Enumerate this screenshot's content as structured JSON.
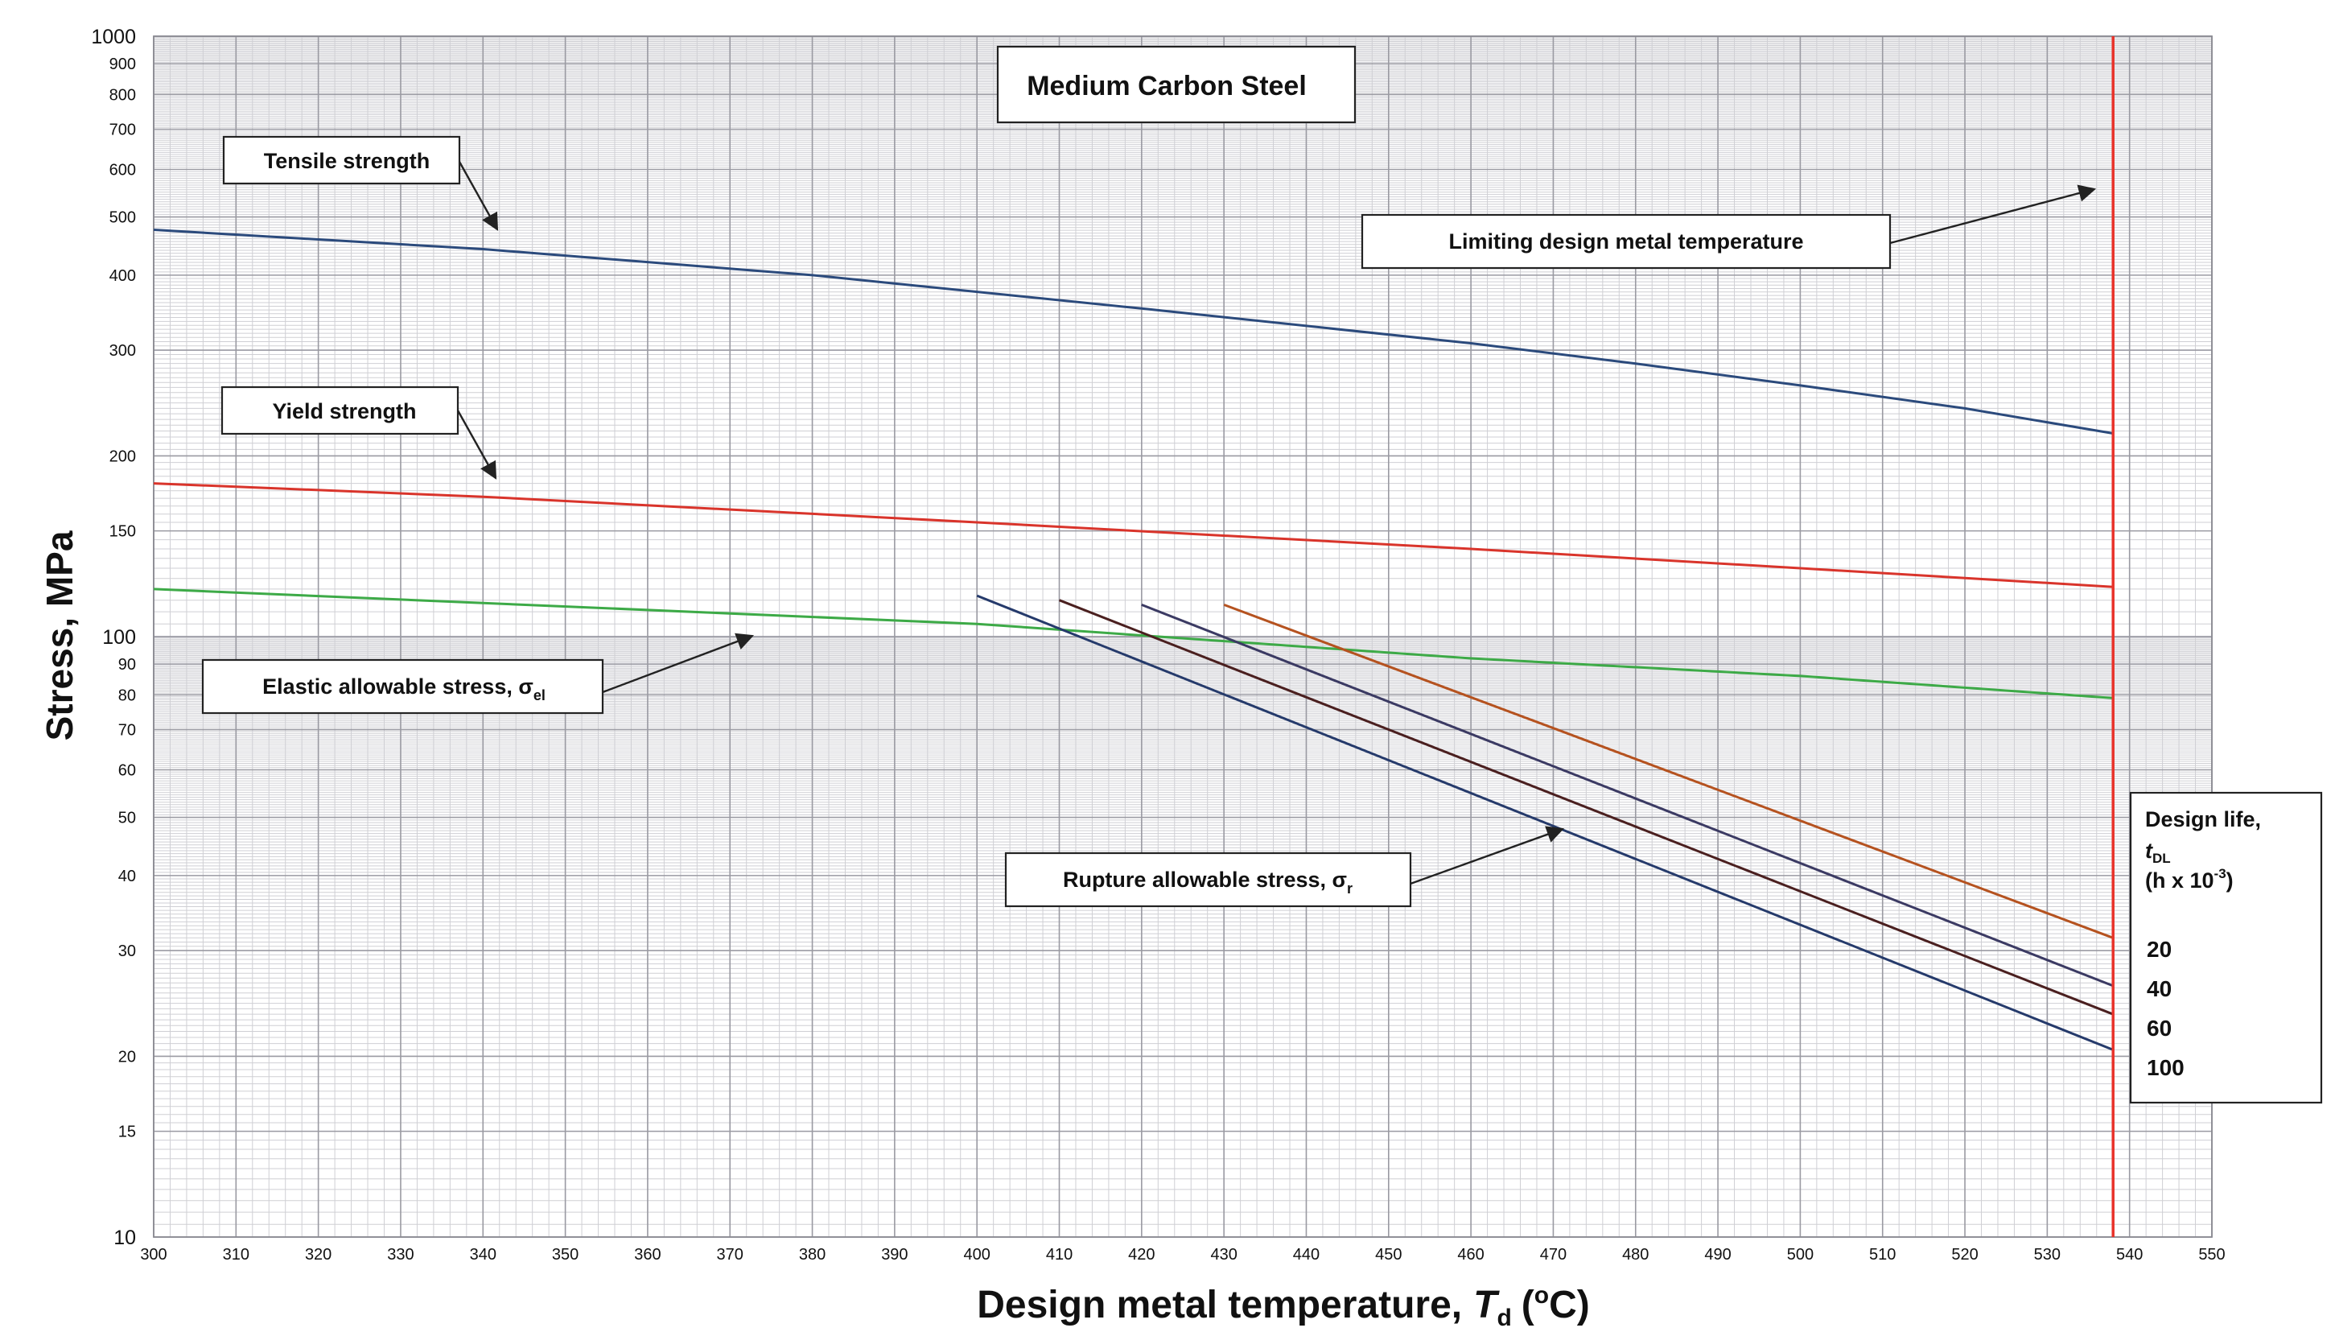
{
  "chart_data": {
    "type": "line",
    "title": "Medium Carbon Steel",
    "xlabel_prefix": "Design metal temperature,",
    "xlabel_symbol": "T",
    "xlabel_symbol_sub": "d",
    "xlabel_unit_open": "(",
    "xlabel_unit_sup": "o",
    "xlabel_unit_close": "C)",
    "ylabel": "Stress, MPa",
    "xlim": [
      300,
      550
    ],
    "ylim": [
      10,
      1000
    ],
    "yscale": "log",
    "x_ticks": [
      300,
      310,
      320,
      330,
      340,
      350,
      360,
      370,
      380,
      390,
      400,
      410,
      420,
      430,
      440,
      450,
      460,
      470,
      480,
      490,
      500,
      510,
      520,
      530,
      540,
      550
    ],
    "y_ticks": [
      10,
      15,
      20,
      30,
      40,
      50,
      60,
      70,
      80,
      90,
      100,
      150,
      200,
      300,
      400,
      500,
      600,
      700,
      800,
      900,
      1000
    ],
    "limiting_temperature": 538,
    "series": [
      {
        "name": "Tensile strength",
        "color": "#2b4a7c",
        "x": [
          300,
          340,
          380,
          420,
          460,
          480,
          500,
          520,
          538
        ],
        "y": [
          476,
          442,
          400,
          352,
          308,
          285,
          262,
          240,
          218
        ]
      },
      {
        "name": "Yield strength",
        "color": "#d9342b",
        "x": [
          300,
          340,
          400,
          460,
          500,
          538
        ],
        "y": [
          180,
          171,
          155,
          140,
          130,
          121
        ]
      },
      {
        "name": "Elastic allowable stress",
        "color": "#3daa47",
        "x": [
          300,
          400,
          460,
          500,
          538
        ],
        "y": [
          120,
          105,
          92,
          86,
          79
        ]
      },
      {
        "name": "Rupture 100",
        "color": "#253a6b",
        "x": [
          400,
          538
        ],
        "y": [
          117,
          20.5
        ]
      },
      {
        "name": "Rupture 60",
        "color": "#4a1f1f",
        "x": [
          410,
          538
        ],
        "y": [
          115,
          23.5
        ]
      },
      {
        "name": "Rupture 40",
        "color": "#3b3a63",
        "x": [
          420,
          538
        ],
        "y": [
          113,
          26.2
        ]
      },
      {
        "name": "Rupture 20",
        "color": "#b5521f",
        "x": [
          430,
          538
        ],
        "y": [
          113,
          31.5
        ]
      }
    ],
    "limit_color": "#e8332b",
    "annotations": {
      "tensile": "Tensile strength",
      "yield": "Yield strength",
      "elastic": "Elastic allowable stress, σ",
      "elastic_sub": "el",
      "rupture": "Rupture allowable stress, σ",
      "rupture_sub": "r",
      "limiting": "Limiting design metal temperature"
    },
    "legend": {
      "title_line1": "Design life,",
      "title_sym": "t",
      "title_sym_sub": "DL",
      "title_line3_pre": "(h x 10",
      "title_line3_sup": "-3",
      "title_line3_post": ")",
      "values": [
        "20",
        "40",
        "60",
        "100"
      ]
    }
  }
}
